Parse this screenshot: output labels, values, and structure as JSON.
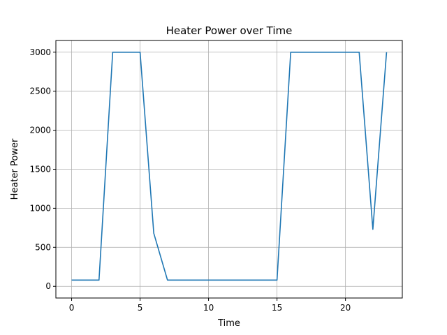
{
  "chart_data": {
    "type": "line",
    "title": "Heater Power over Time",
    "xlabel": "Time",
    "ylabel": "Heater Power",
    "xlim": [
      -1.15,
      24.15
    ],
    "ylim": [
      -150,
      3150
    ],
    "x_ticks": [
      0,
      5,
      10,
      15,
      20
    ],
    "y_ticks": [
      0,
      500,
      1000,
      1500,
      2000,
      2500,
      3000
    ],
    "grid": true,
    "line_color": "#1f77b4",
    "series": [
      {
        "x": [
          0,
          1,
          2,
          3,
          4,
          5,
          6,
          7,
          8,
          9,
          10,
          11,
          12,
          13,
          14,
          15,
          16,
          17,
          18,
          19,
          20,
          21,
          22,
          23
        ],
        "values": [
          80,
          80,
          80,
          3000,
          3000,
          3000,
          680,
          80,
          80,
          80,
          80,
          80,
          80,
          80,
          80,
          80,
          3000,
          3000,
          3000,
          3000,
          3000,
          3000,
          730,
          3000
        ]
      }
    ]
  }
}
